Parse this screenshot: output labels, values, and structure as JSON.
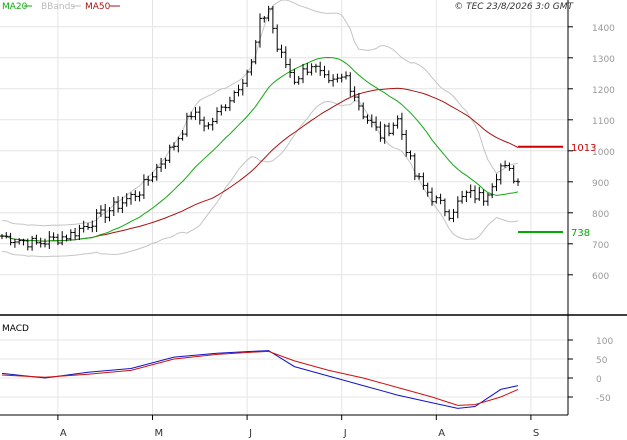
{
  "chart_data": [
    {
      "type": "ohlc",
      "title": "",
      "legend": {
        "placement": "top-left",
        "items": [
          {
            "label": "MA20",
            "color": "#11aa11"
          },
          {
            "label": "BBands",
            "color": "#bbbbbb"
          },
          {
            "label": "MA50",
            "color": "#aa1111"
          }
        ]
      },
      "copyright": "© TEC 23/8/2026 3:0 GMT",
      "ylim": [
        480,
        1540
      ],
      "y_ticks": [
        "1400",
        "1300",
        "1200",
        "1100",
        "1000",
        "900",
        "800",
        "700",
        "600"
      ],
      "x_months": [
        "A",
        "M",
        "J",
        "J",
        "A",
        "S"
      ],
      "grid": true,
      "price_open": 725,
      "price_anchors": [
        [
          0,
          725
        ],
        [
          8,
          700
        ],
        [
          16,
          730
        ],
        [
          24,
          800
        ],
        [
          32,
          870
        ],
        [
          40,
          1020
        ],
        [
          44,
          1120
        ],
        [
          48,
          1080
        ],
        [
          54,
          1190
        ],
        [
          58,
          1280
        ],
        [
          60,
          1410
        ],
        [
          62,
          1460
        ],
        [
          64,
          1330
        ],
        [
          68,
          1230
        ],
        [
          72,
          1280
        ],
        [
          76,
          1210
        ],
        [
          80,
          1240
        ],
        [
          84,
          1120
        ],
        [
          88,
          1050
        ],
        [
          92,
          1100
        ],
        [
          96,
          920
        ],
        [
          100,
          850
        ],
        [
          104,
          800
        ],
        [
          108,
          860
        ],
        [
          112,
          850
        ],
        [
          116,
          950
        ],
        [
          118,
          930
        ],
        [
          120,
          900
        ]
      ],
      "price_last": 900,
      "annotations": [
        {
          "label": "1013",
          "value": 1013,
          "color": "#cc0000"
        },
        {
          "label": "738",
          "value": 738,
          "color": "#00aa00"
        }
      ]
    },
    {
      "type": "line",
      "title": "MACD",
      "y_ticks": [
        "100",
        "50",
        "0",
        "-50"
      ],
      "ylim": [
        -90,
        140
      ],
      "series": [
        {
          "color": "#1111cc",
          "points": [
            [
              0,
              12
            ],
            [
              10,
              0
            ],
            [
              20,
              15
            ],
            [
              30,
              25
            ],
            [
              40,
              55
            ],
            [
              50,
              65
            ],
            [
              58,
              70
            ],
            [
              62,
              72
            ],
            [
              68,
              30
            ],
            [
              76,
              5
            ],
            [
              84,
              -20
            ],
            [
              92,
              -45
            ],
            [
              100,
              -65
            ],
            [
              106,
              -80
            ],
            [
              110,
              -75
            ],
            [
              116,
              -30
            ],
            [
              120,
              -20
            ]
          ]
        },
        {
          "color": "#cc1111",
          "points": [
            [
              0,
              8
            ],
            [
              10,
              2
            ],
            [
              20,
              10
            ],
            [
              30,
              20
            ],
            [
              40,
              50
            ],
            [
              50,
              62
            ],
            [
              58,
              68
            ],
            [
              62,
              70
            ],
            [
              68,
              45
            ],
            [
              76,
              20
            ],
            [
              84,
              0
            ],
            [
              92,
              -25
            ],
            [
              100,
              -50
            ],
            [
              106,
              -72
            ],
            [
              110,
              -70
            ],
            [
              116,
              -50
            ],
            [
              120,
              -30
            ]
          ]
        }
      ]
    }
  ]
}
